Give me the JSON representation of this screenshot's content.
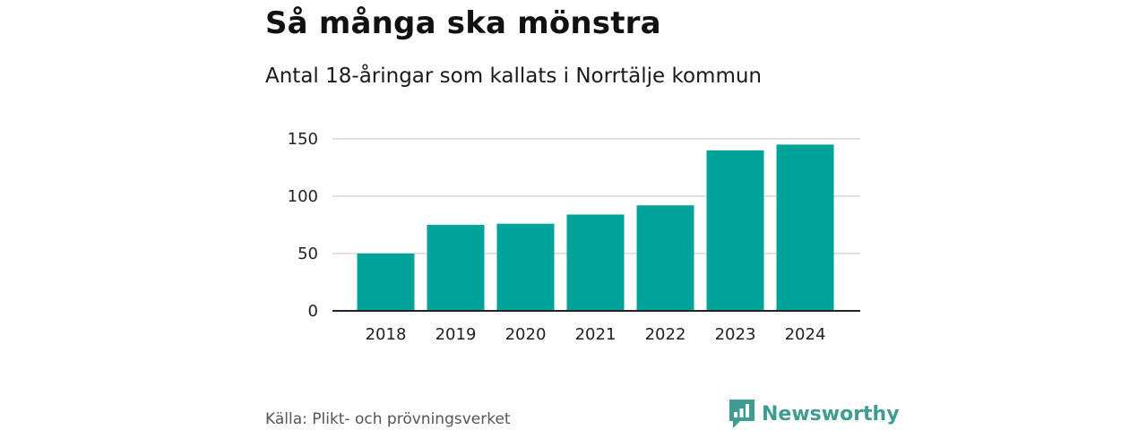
{
  "chart_data": {
    "type": "bar",
    "title": "Så många ska mönstra",
    "subtitle": "Antal 18-åringar som kallats i Norrtälje kommun",
    "xlabel": "",
    "ylabel": "",
    "categories": [
      "2018",
      "2019",
      "2020",
      "2021",
      "2022",
      "2023",
      "2024"
    ],
    "values": [
      50,
      75,
      76,
      84,
      92,
      140,
      145
    ],
    "ylim": [
      0,
      150
    ],
    "yticks": [
      "0",
      "50",
      "100",
      "150"
    ],
    "grid": true,
    "bar_color": "#00a39a",
    "source": "Källa: Plikt- och prövningsverket"
  },
  "brand": {
    "name": "Newsworthy",
    "icon": "newsworthy-logo-icon",
    "color": "#3f9c93"
  }
}
